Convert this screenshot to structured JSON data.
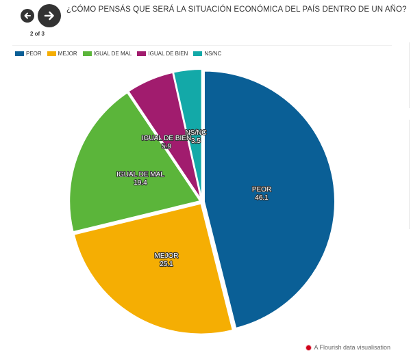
{
  "nav": {
    "page_indicator": "2 of 3"
  },
  "footer": {
    "text": "A Flourish data visualisation"
  },
  "chart_data": {
    "type": "pie",
    "title": "¿CÓMO PENSÁS QUE SERÁ LA SITUACIÓN ECONÓMICA DEL PAÍS DENTRO DE UN AÑO?",
    "legend_position": "top-left",
    "categories": [
      "PEOR",
      "MEJOR",
      "IGUAL DE MAL",
      "IGUAL DE BIEN",
      "NS/NC"
    ],
    "values": [
      46.1,
      25.1,
      19.4,
      5.9,
      3.5
    ],
    "value_labels": [
      "46.1",
      "25.1",
      "19.4",
      "5.9",
      "3.5"
    ],
    "colors": [
      "#0a5f96",
      "#f5ae03",
      "#5bb53a",
      "#a11c6e",
      "#13a9a8"
    ]
  }
}
